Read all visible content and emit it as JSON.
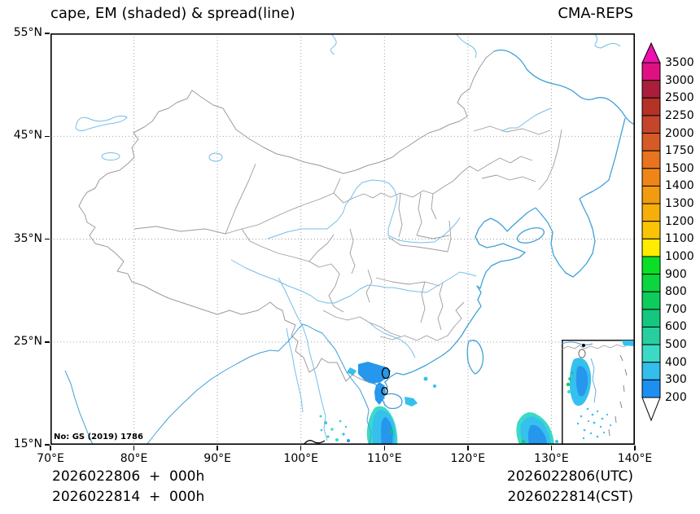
{
  "header": {
    "title": "cape, EM (shaded) & spread(line)",
    "model": "CMA-REPS"
  },
  "map": {
    "watermark": "No: GS (2019) 1786"
  },
  "axes": {
    "x_ticks": [
      "70°E",
      "80°E",
      "90°E",
      "100°E",
      "110°E",
      "120°E",
      "130°E",
      "140°E"
    ],
    "y_ticks": [
      "55°N",
      "45°N",
      "35°N",
      "25°N",
      "15°N"
    ]
  },
  "colorbar": {
    "labels": [
      "3500",
      "3000",
      "2500",
      "2250",
      "2000",
      "1750",
      "1500",
      "1400",
      "1300",
      "1200",
      "1100",
      "1000",
      "900",
      "800",
      "700",
      "600",
      "500",
      "400",
      "300",
      "200"
    ],
    "segment_colors_top_to_bottom": [
      "#DF1181",
      "#A91E3B",
      "#B53227",
      "#C4452A",
      "#D65A26",
      "#E87420",
      "#EE8617",
      "#F29A10",
      "#F6AE0B",
      "#FAC405",
      "#FFEC00",
      "#0ADF25",
      "#0BD53F",
      "#0CCD5C",
      "#13C87E",
      "#27CF9F",
      "#3BDAC6",
      "#33BEEC",
      "#1E8FF2"
    ],
    "over_arrow_color": "#EE10B0",
    "under_arrow_color": "#FFFFFF"
  },
  "footer": {
    "run_line_1": "2026022806  +  000h",
    "run_line_2": "2026022814  +  000h",
    "valid_line_1": "2026022806(UTC)",
    "valid_line_2": "2026022814(CST)"
  },
  "chart_data": {
    "type": "heatmap",
    "title": "cape, EM (shaded) & spread(line)",
    "model_label": "CMA-REPS",
    "variable": "cape ensemble mean (shaded) with ensemble spread contours (line)",
    "x_axis": {
      "range_deg_east": [
        70,
        140
      ],
      "tick_step_deg": 10,
      "tick_labels": [
        "70°E",
        "80°E",
        "90°E",
        "100°E",
        "110°E",
        "120°E",
        "130°E",
        "140°E"
      ]
    },
    "y_axis": {
      "range_deg_north": [
        15,
        55
      ],
      "tick_step_deg": 10,
      "tick_labels": [
        "55°N",
        "45°N",
        "35°N",
        "25°N",
        "15°N"
      ]
    },
    "grid": "dotted gray every 10 degrees",
    "legend_position": "right vertical colorbar with over/under arrows",
    "colorbar_levels": [
      200,
      300,
      400,
      500,
      600,
      700,
      800,
      900,
      1000,
      1100,
      1200,
      1300,
      1400,
      1500,
      1750,
      2000,
      2250,
      2500,
      3000,
      3500
    ],
    "shaded_regions": [
      {
        "name": "gulf-of-tonkin-coastal-shading",
        "approx_lon": 108.5,
        "approx_lat": 20.5,
        "approx_max_level": 300
      },
      {
        "name": "blob-south-of-hainan",
        "approx_lon": 109.5,
        "approx_lat": 16.0,
        "approx_max_level": 500
      },
      {
        "name": "scattered-specks-indochina",
        "approx_lon": 103.5,
        "approx_lat": 15.5,
        "approx_max_level": 400
      },
      {
        "name": "philippine-sea-blob",
        "approx_lon": 127.5,
        "approx_lat": 15.5,
        "approx_max_level": 400
      },
      {
        "name": "south-china-sea-blob",
        "inset": true,
        "approx_max_level": 500
      }
    ],
    "spread_contours": [
      {
        "approx_lon": 108.3,
        "approx_lat": 20.2
      },
      {
        "approx_lon": 108.2,
        "approx_lat": 18.5
      },
      {
        "approx_lon": 100.5,
        "approx_lat": 15.1
      }
    ],
    "inset": "South China Sea inset box at lower right"
  }
}
